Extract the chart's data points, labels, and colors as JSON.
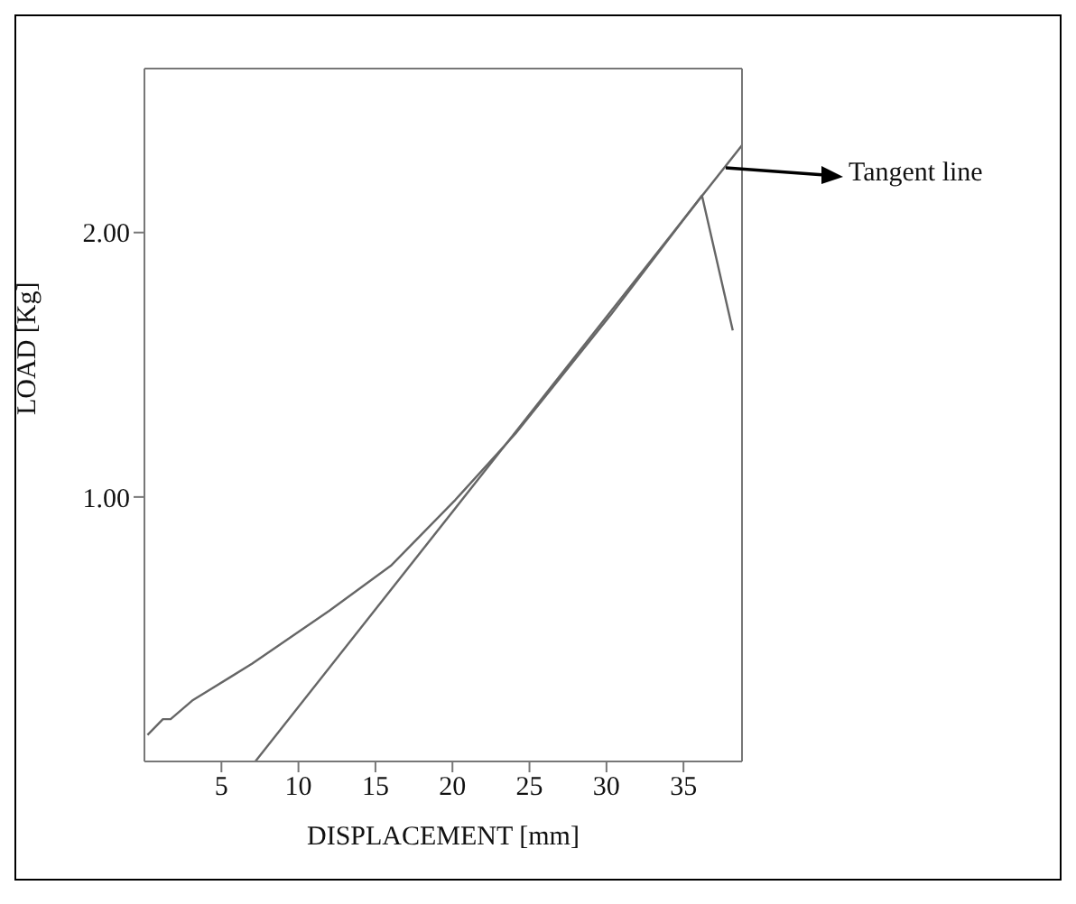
{
  "chart_data": {
    "type": "line",
    "xlabel": "DISPLACEMENT  [mm]",
    "ylabel": "LOAD  [Kg]",
    "xlim": [
      0,
      38.8
    ],
    "ylim": [
      0,
      2.62
    ],
    "xticks": [
      5,
      10,
      15,
      20,
      25,
      30,
      35
    ],
    "yticks": [
      {
        "value": 1,
        "label": "1.00"
      },
      {
        "value": 2,
        "label": "2.00"
      }
    ],
    "marker": "none",
    "line_style": "solid",
    "annotations": [
      "Tangent line"
    ],
    "series": [
      {
        "color": "#666666",
        "x": [
          0.2,
          1.2,
          1.7,
          3.1,
          7.0,
          12.0,
          16.0,
          20.2,
          24.1,
          30.3,
          36.2,
          38.2
        ],
        "values": [
          0.1,
          0.16,
          0.16,
          0.23,
          0.37,
          0.57,
          0.74,
          0.99,
          1.24,
          1.69,
          2.14,
          1.63
        ]
      },
      {
        "color": "#666666",
        "x": [
          7.2,
          38.8
        ],
        "values": [
          0,
          2.33
        ]
      }
    ]
  }
}
